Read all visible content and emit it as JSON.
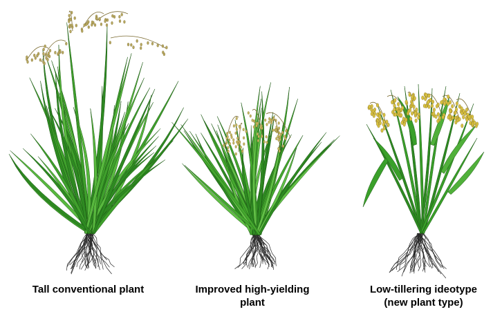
{
  "figure": {
    "background": "#ffffff",
    "plants": [
      {
        "id": "tall",
        "caption_lines": [
          "Tall conventional plant"
        ],
        "leaf_color": "#3fa02c",
        "panicle_color": "#b8a860",
        "root_color": "#2a2a2a"
      },
      {
        "id": "improved",
        "caption_lines": [
          "Improved high-yielding",
          "plant"
        ],
        "leaf_color": "#44a82e",
        "panicle_color": "#c8b860",
        "root_color": "#2a2a2a"
      },
      {
        "id": "ideotype",
        "caption_lines": [
          "Low-tillering ideotype",
          "(new plant type)"
        ],
        "leaf_color": "#3aa02a",
        "panicle_color": "#d8c040",
        "root_color": "#2a2a2a"
      }
    ]
  }
}
